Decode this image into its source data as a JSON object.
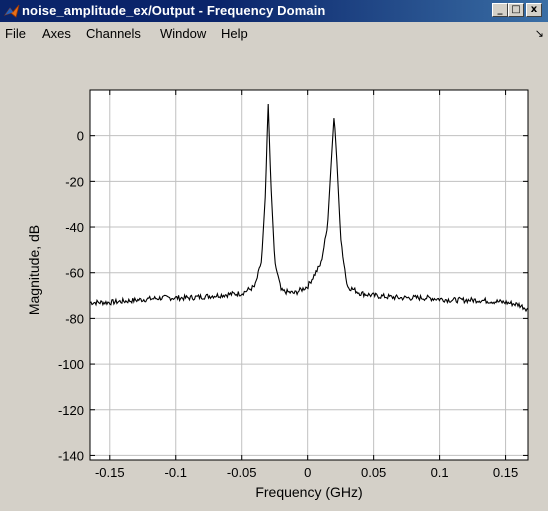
{
  "window": {
    "title": "noise_amplitude_ex/Output - Frequency Domain"
  },
  "menu": {
    "items": [
      "File",
      "Axes",
      "Channels",
      "Window",
      "Help"
    ]
  },
  "colors": {
    "title_bar": "#0a246a",
    "plot_background": "#ffffff",
    "trace": "#000000",
    "grid": "#c0c0c0"
  },
  "chart_data": {
    "type": "line",
    "xlabel": "Frequency (GHz)",
    "ylabel": "Magnitude, dB",
    "xlim": [
      -0.165,
      0.167
    ],
    "ylim": [
      -142,
      20
    ],
    "xticks": [
      -0.15,
      -0.1,
      -0.05,
      0,
      0.05,
      0.1,
      0.15
    ],
    "xtick_labels": [
      "-0.15",
      "-0.1",
      "-0.05",
      "0",
      "0.05",
      "0.1",
      "0.15"
    ],
    "yticks": [
      0,
      -20,
      -40,
      -60,
      -80,
      -100,
      -120,
      -140
    ],
    "ytick_labels": [
      "0",
      "-20",
      "-40",
      "-60",
      "-80",
      "-100",
      "-120",
      "-140"
    ],
    "grid": true,
    "series": [
      {
        "x": [
          -0.165,
          -0.15,
          -0.13,
          -0.11,
          -0.09,
          -0.07,
          -0.05,
          -0.04,
          -0.035,
          -0.032,
          -0.03,
          -0.028,
          -0.025,
          -0.02,
          -0.01,
          0.0,
          0.01,
          0.015,
          0.018,
          0.02,
          0.022,
          0.025,
          0.03,
          0.04,
          0.05,
          0.07,
          0.09,
          0.11,
          0.13,
          0.15,
          0.16,
          0.167
        ],
        "y": [
          -73,
          -73,
          -72,
          -71,
          -71,
          -70,
          -69,
          -66,
          -55,
          -25,
          15,
          -20,
          -55,
          -68,
          -69,
          -66,
          -56,
          -40,
          -10,
          9,
          -10,
          -45,
          -66,
          -69,
          -70,
          -71,
          -71,
          -72,
          -72,
          -73,
          -74,
          -76
        ]
      }
    ]
  }
}
